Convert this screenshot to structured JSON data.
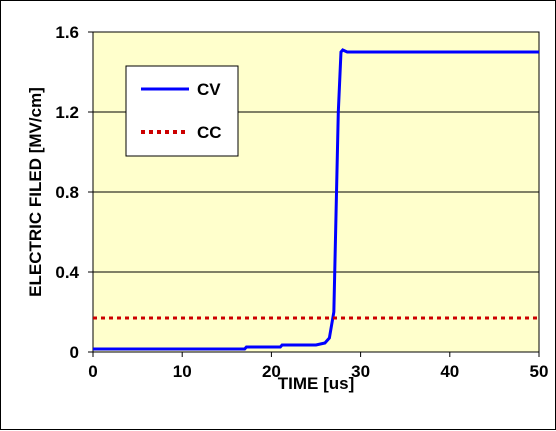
{
  "chart_data": {
    "type": "line",
    "xlabel": "TIME [us]",
    "ylabel": "ELECTRIC FILED [MV/cm]",
    "xlim": [
      0,
      50
    ],
    "ylim": [
      0,
      1.6
    ],
    "xticks": [
      0,
      10,
      20,
      30,
      40,
      50
    ],
    "yticks": [
      0,
      0.4,
      0.8,
      1.2,
      1.6
    ],
    "xtick_labels": [
      "0",
      "10",
      "20",
      "30",
      "40",
      "50"
    ],
    "ytick_labels": [
      "0",
      "0.4",
      "0.8",
      "1.2",
      "1.6"
    ],
    "grid": "horizontal",
    "legend_position": "top-left",
    "plot_background": "#FFFFCC",
    "series": [
      {
        "name": "CV",
        "color": "#0000FF",
        "style": "solid",
        "x": [
          0,
          17,
          17.2,
          21,
          21.2,
          25,
          26,
          26.5,
          27,
          27.2,
          27.5,
          27.8,
          28,
          28.5,
          50
        ],
        "y": [
          0.015,
          0.015,
          0.025,
          0.025,
          0.035,
          0.035,
          0.045,
          0.07,
          0.2,
          0.6,
          1.2,
          1.5,
          1.51,
          1.5,
          1.5
        ]
      },
      {
        "name": "CC",
        "color": "#CC0000",
        "style": "dotted",
        "x": [
          0,
          50
        ],
        "y": [
          0.17,
          0.17
        ]
      }
    ]
  }
}
